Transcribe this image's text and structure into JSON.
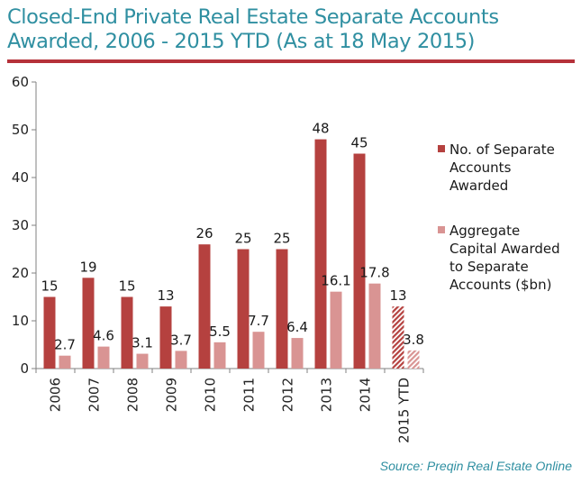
{
  "title_lines": [
    "Closed-End Private Real Estate Separate Accounts",
    "Awarded, 2006 - 2015 YTD (As at 18 May 2015)"
  ],
  "source": "Source: Preqin Real Estate Online",
  "colors": {
    "title": "#2f8fa1",
    "rule": "#b5313a",
    "series_1": "#b5413f",
    "series_2": "#d99493"
  },
  "chart_data": {
    "type": "bar",
    "categories": [
      "2006",
      "2007",
      "2008",
      "2009",
      "2010",
      "2011",
      "2012",
      "2013",
      "2014",
      "2015 YTD"
    ],
    "series": [
      {
        "name": "No. of Separate Accounts Awarded",
        "values": [
          15,
          19,
          15,
          13,
          26,
          25,
          25,
          48,
          45,
          13
        ],
        "labels": [
          "15",
          "19",
          "15",
          "13",
          "26",
          "25",
          "25",
          "48",
          "45",
          "13"
        ],
        "color": "#b5413f"
      },
      {
        "name": "Aggregate Capital Awarded to Separate Accounts ($bn)",
        "values": [
          2.7,
          4.6,
          3.1,
          3.7,
          5.5,
          7.7,
          6.4,
          16.1,
          17.8,
          3.8
        ],
        "labels": [
          "2.7",
          "4.6",
          "3.1",
          "3.7",
          "5.5",
          "7.7",
          "6.4",
          "16.1",
          "17.8",
          "3.8"
        ],
        "color": "#d99493"
      }
    ],
    "hatched_categories": [
      "2015 YTD"
    ],
    "y_ticks": [
      "0",
      "10",
      "20",
      "30",
      "40",
      "50",
      "60"
    ],
    "ylim": [
      0,
      60
    ],
    "grid": false,
    "legend_position": "right",
    "legend": [
      {
        "lines": [
          "No. of Separate",
          "Accounts",
          "Awarded"
        ]
      },
      {
        "lines": [
          "Aggregate",
          "Capital Awarded",
          "to Separate",
          "Accounts ($bn)"
        ]
      }
    ]
  }
}
